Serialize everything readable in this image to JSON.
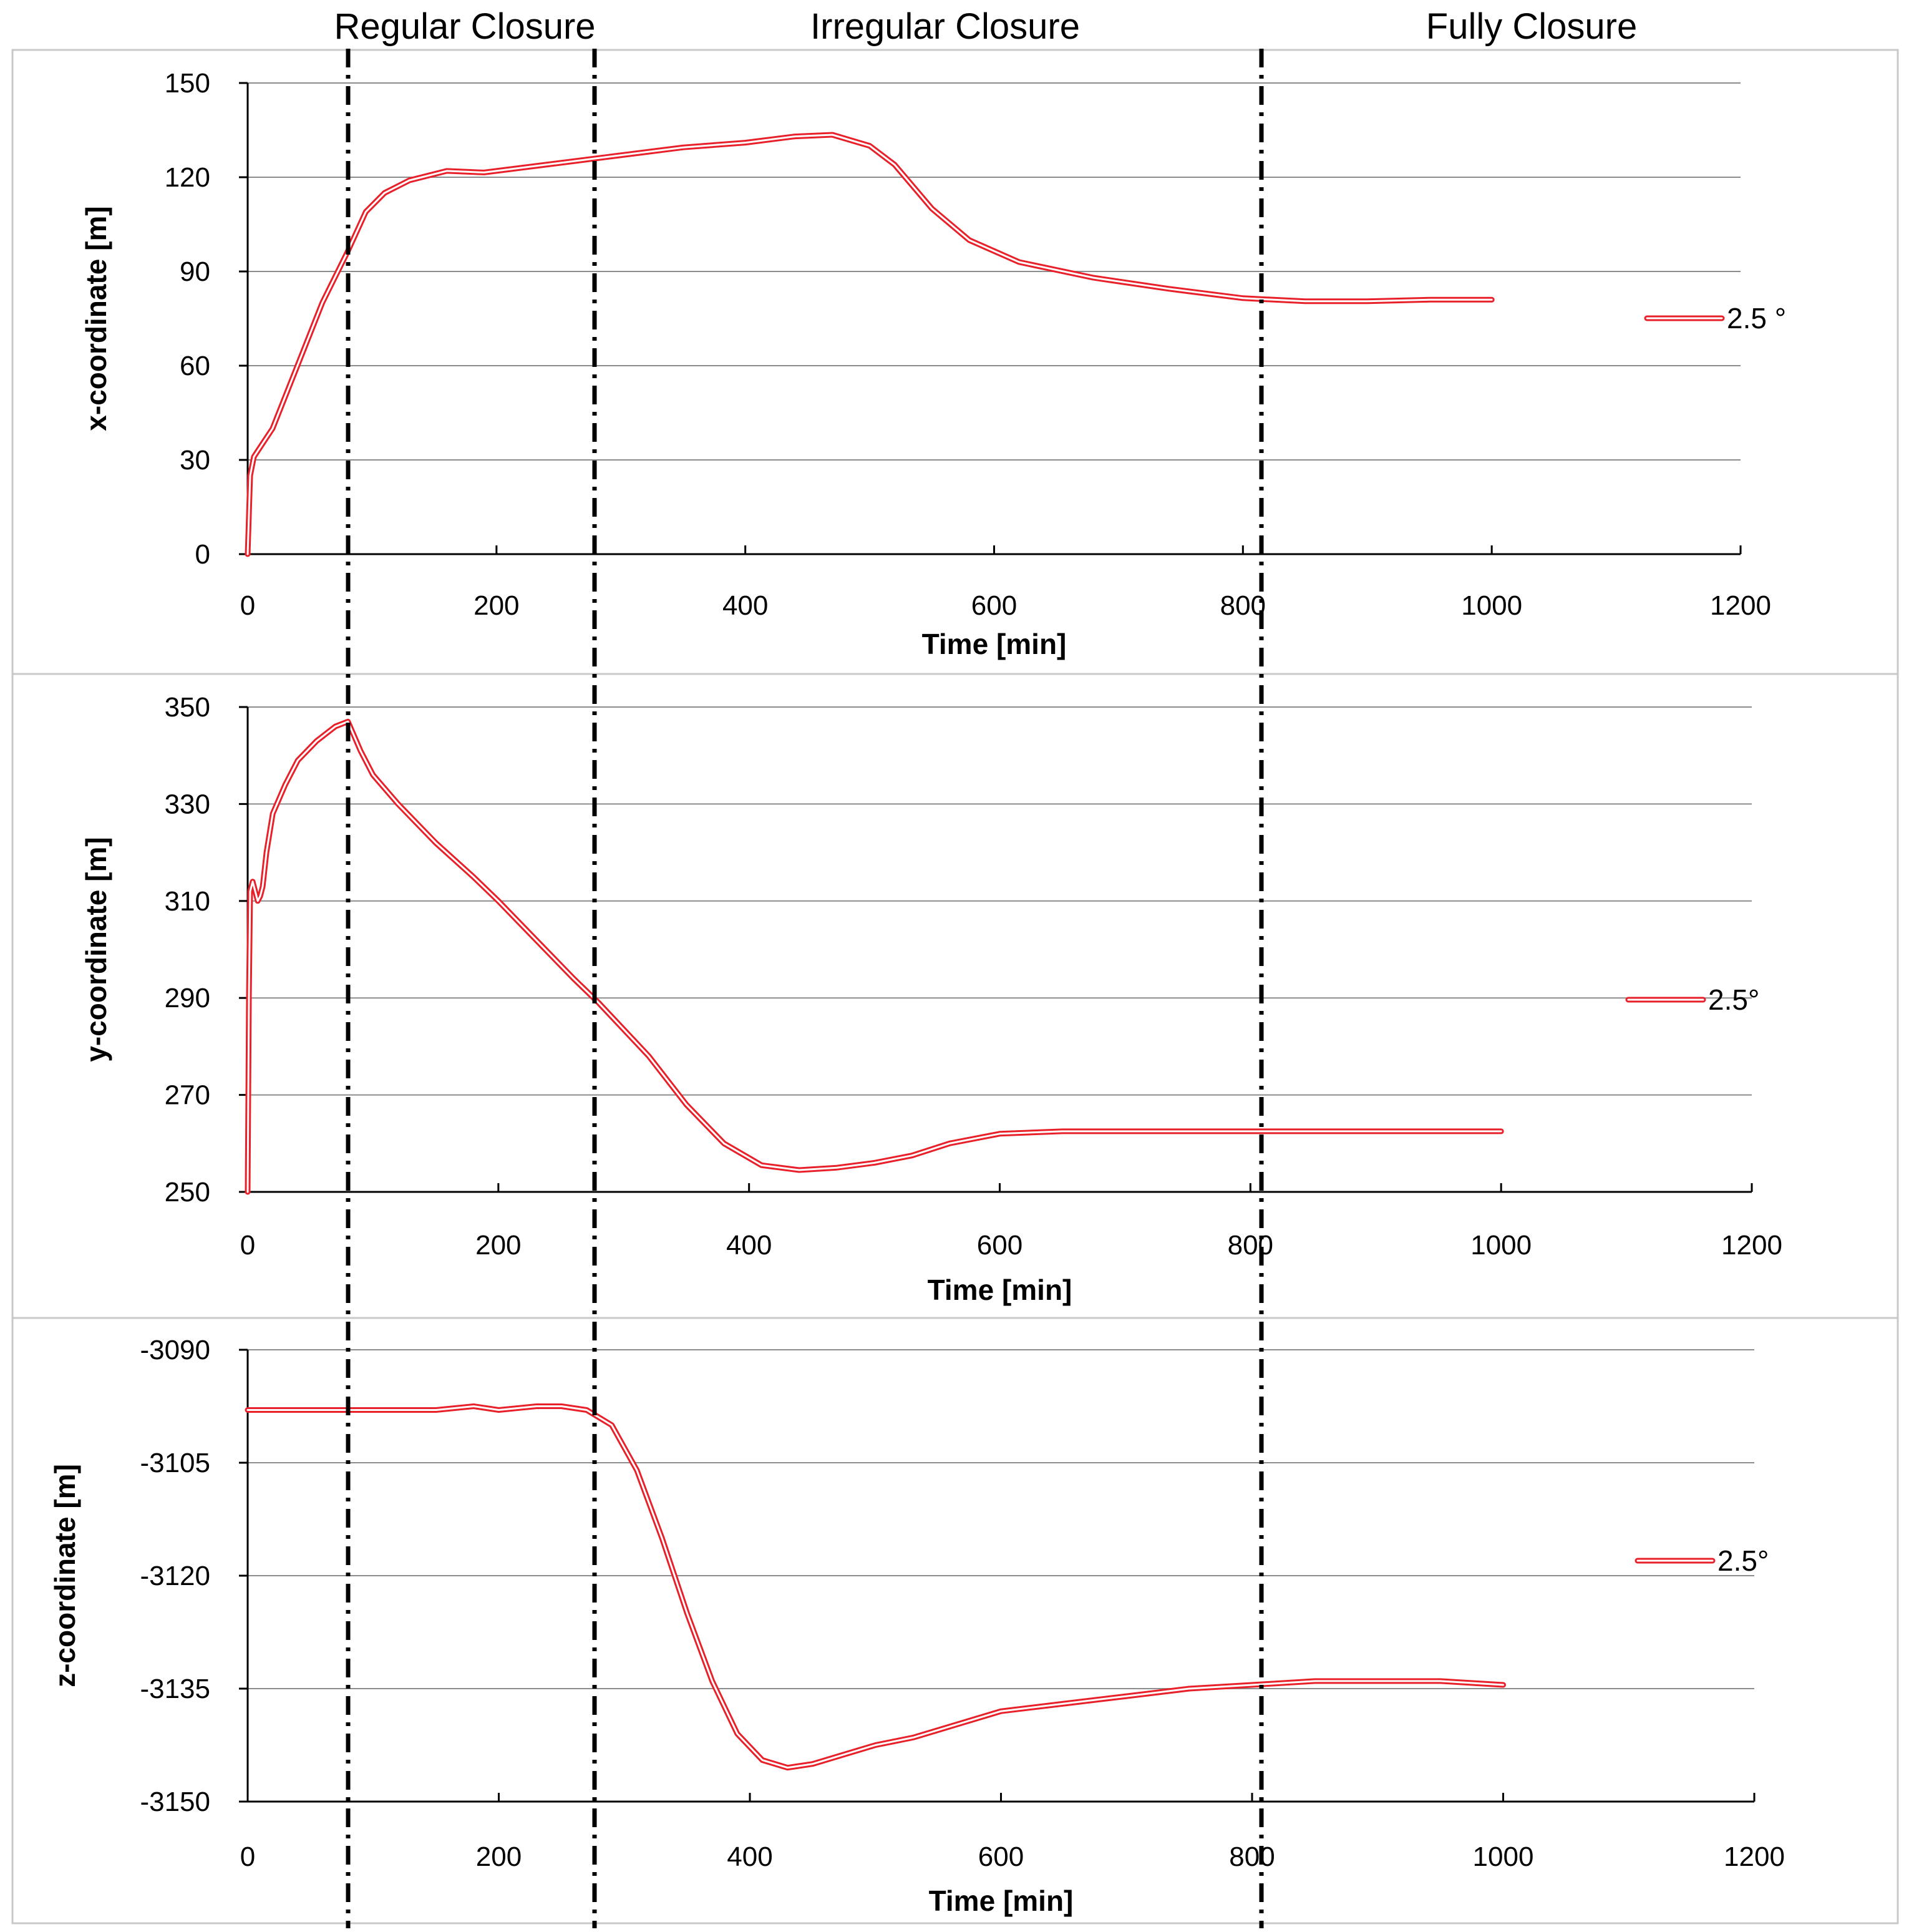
{
  "phases": [
    {
      "label": "Regular Closure",
      "start": 80,
      "end": 277
    },
    {
      "label": "Irregular Closure",
      "start": 277,
      "end": 808
    },
    {
      "label": "Fully Closure",
      "start": 808,
      "end": 1200
    }
  ],
  "boundaries": [
    80,
    277,
    808
  ],
  "chart_data": [
    {
      "type": "line",
      "xlabel": "Time [min]",
      "ylabel": "x-coordinate [m]",
      "xlim": [
        0,
        1200
      ],
      "ylim": [
        0,
        150
      ],
      "xticks": [
        "0",
        "200",
        "400",
        "600",
        "800",
        "1000",
        "1200"
      ],
      "yticks": [
        "0",
        "30",
        "60",
        "90",
        "120",
        "150"
      ],
      "grid": true,
      "legend_position": "right",
      "series": [
        {
          "name": "2.5 °",
          "color": "#e8202a",
          "x": [
            0,
            2,
            5,
            10,
            20,
            40,
            60,
            80,
            95,
            110,
            130,
            160,
            190,
            220,
            280,
            350,
            400,
            440,
            470,
            500,
            520,
            550,
            580,
            620,
            680,
            740,
            800,
            850,
            900,
            950,
            1000
          ],
          "y": [
            0,
            25,
            31,
            34,
            40,
            60,
            80,
            96,
            109,
            115,
            119,
            122,
            121.5,
            123,
            126,
            129.5,
            131,
            133,
            133.5,
            130,
            124,
            110,
            100,
            93,
            88,
            84.5,
            81.5,
            80.5,
            80.5,
            81,
            81
          ]
        }
      ]
    },
    {
      "type": "line",
      "xlabel": "Time [min]",
      "ylabel": "y-coordinate [m]",
      "xlim": [
        0,
        1200
      ],
      "ylim": [
        250,
        350
      ],
      "xticks": [
        "0",
        "200",
        "400",
        "600",
        "800",
        "1000",
        "1200"
      ],
      "yticks": [
        "250",
        "270",
        "290",
        "310",
        "330",
        "350"
      ],
      "grid": true,
      "legend_position": "right",
      "series": [
        {
          "name": "2.5°",
          "color": "#e8202a",
          "x": [
            0,
            1,
            2,
            4,
            6,
            8,
            10,
            12,
            15,
            20,
            30,
            40,
            55,
            70,
            80,
            85,
            90,
            100,
            120,
            150,
            180,
            200,
            230,
            260,
            280,
            320,
            350,
            380,
            410,
            440,
            470,
            500,
            530,
            560,
            600,
            650,
            700,
            800,
            900,
            1000
          ],
          "y": [
            250,
            290,
            312,
            314,
            312,
            310,
            311,
            313,
            320,
            328,
            334,
            339,
            343,
            346,
            347,
            344,
            341,
            336,
            330,
            322,
            315,
            310,
            302,
            294,
            289,
            278,
            268,
            260,
            255.5,
            254.5,
            255,
            256,
            257.5,
            260,
            262,
            262.5,
            262.5,
            262.5,
            262.5,
            262.5
          ]
        }
      ]
    },
    {
      "type": "line",
      "xlabel": "Time [min]",
      "ylabel": "z-coordinate [m]",
      "xlim": [
        0,
        1200
      ],
      "ylim": [
        -3150,
        -3090
      ],
      "xticks": [
        "0",
        "200",
        "400",
        "600",
        "800",
        "1000",
        "1200"
      ],
      "yticks": [
        "-3150",
        "-3135",
        "-3120",
        "-3105",
        "-3090"
      ],
      "grid": true,
      "legend_position": "right",
      "series": [
        {
          "name": "2.5°",
          "color": "#e8202a",
          "x": [
            0,
            100,
            150,
            180,
            200,
            230,
            250,
            270,
            290,
            310,
            330,
            350,
            370,
            390,
            410,
            430,
            450,
            480,
            500,
            530,
            560,
            600,
            650,
            700,
            750,
            800,
            850,
            900,
            950,
            1000
          ],
          "y": [
            -3098,
            -3098,
            -3098,
            -3097.5,
            -3098,
            -3097.5,
            -3097.5,
            -3098,
            -3100,
            -3106,
            -3115,
            -3125,
            -3134,
            -3141,
            -3144.5,
            -3145.5,
            -3145,
            -3143.5,
            -3142.5,
            -3141.5,
            -3140,
            -3138,
            -3137,
            -3136,
            -3135,
            -3134.5,
            -3134,
            -3134,
            -3134,
            -3134.5
          ]
        }
      ]
    }
  ]
}
